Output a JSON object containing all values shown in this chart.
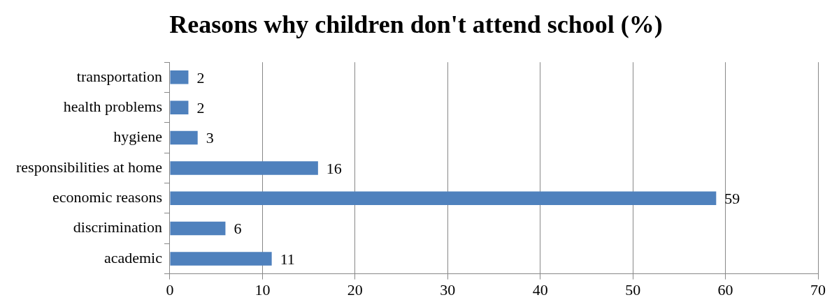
{
  "chart_data": {
    "type": "bar",
    "orientation": "horizontal",
    "title": "Reasons why children don't attend school (%)",
    "categories": [
      "transportation",
      "health problems",
      "hygiene",
      "responsibilities at home",
      "economic reasons",
      "discrimination",
      "academic"
    ],
    "values": [
      2,
      2,
      3,
      16,
      59,
      6,
      11
    ],
    "color": "#4f81bd",
    "data_labels": true,
    "xlim": [
      0,
      70
    ],
    "xticks": [
      0,
      10,
      20,
      30,
      40,
      50,
      60,
      70
    ],
    "grid": "x",
    "legend": false
  }
}
